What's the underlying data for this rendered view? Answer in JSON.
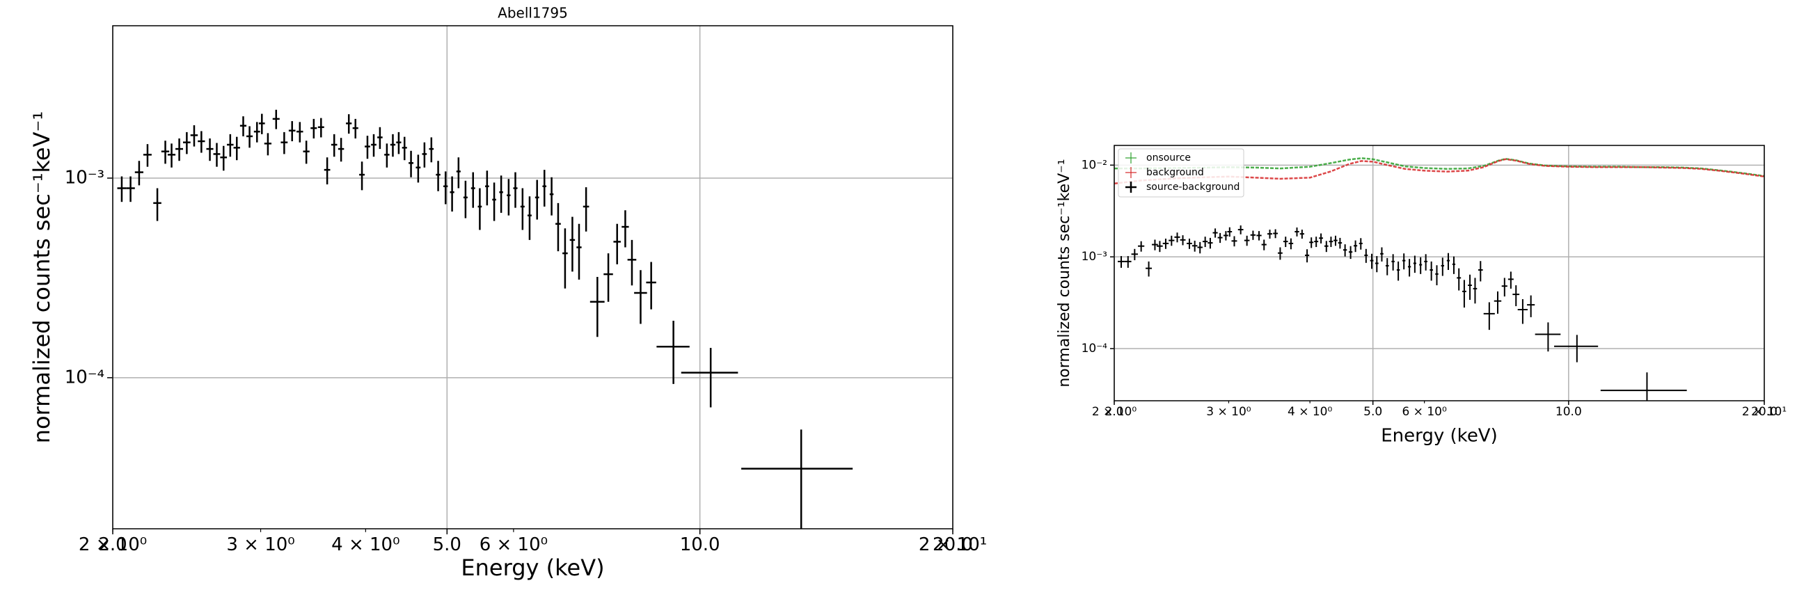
{
  "chart_data": [
    {
      "type": "errorbar",
      "title": "Abell1795",
      "xlabel": "Energy (keV)",
      "ylabel": "normalized counts sec⁻¹keV⁻¹",
      "xscale": "log",
      "yscale": "log",
      "grid": true,
      "xlim": [
        2,
        20
      ],
      "ylim": [
        1.75e-05,
        0.0058
      ],
      "xticks": [
        {
          "value": 2,
          "label": "2.0"
        },
        {
          "value": 5,
          "label": "5.0"
        },
        {
          "value": 10,
          "label": "10.0"
        },
        {
          "value": 20,
          "label": "20.0"
        }
      ],
      "xminorticks": [
        {
          "value": 2,
          "label": "2 × 10⁰"
        },
        {
          "value": 3,
          "label": "3 × 10⁰"
        },
        {
          "value": 4,
          "label": "4 × 10⁰"
        },
        {
          "value": 6,
          "label": "6 × 10⁰"
        },
        {
          "value": 20,
          "label": "2 × 10¹"
        }
      ],
      "yticks": [
        {
          "value": 0.001,
          "label": "10⁻³"
        },
        {
          "value": 0.0001,
          "label": "10⁻⁴"
        }
      ],
      "series": [
        {
          "style": "errorbar",
          "color": "#000000",
          "x": [
            2.05,
            2.1,
            2.15,
            2.2,
            2.26,
            2.31,
            2.35,
            2.4,
            2.45,
            2.5,
            2.55,
            2.61,
            2.66,
            2.71,
            2.76,
            2.81,
            2.86,
            2.91,
            2.97,
            3.01,
            3.06,
            3.13,
            3.2,
            3.27,
            3.34,
            3.4,
            3.47,
            3.54,
            3.6,
            3.67,
            3.74,
            3.82,
            3.89,
            3.96,
            4.02,
            4.09,
            4.16,
            4.24,
            4.31,
            4.38,
            4.45,
            4.53,
            4.62,
            4.7,
            4.79,
            4.88,
            4.98,
            5.07,
            5.16,
            5.26,
            5.37,
            5.47,
            5.58,
            5.69,
            5.8,
            5.92,
            6.03,
            6.15,
            6.27,
            6.4,
            6.53,
            6.66,
            6.78,
            6.91,
            7.05,
            7.18,
            7.32,
            7.55,
            7.78,
            7.97,
            8.15,
            8.3,
            8.5,
            8.75,
            9.3,
            10.3,
            13.2
          ],
          "values": [
            0.00089,
            0.00089,
            0.00107,
            0.00131,
            0.00075,
            0.00136,
            0.00131,
            0.0014,
            0.00151,
            0.00164,
            0.00153,
            0.0014,
            0.00132,
            0.00127,
            0.00147,
            0.00142,
            0.00183,
            0.00162,
            0.00171,
            0.00188,
            0.00149,
            0.00198,
            0.00151,
            0.00173,
            0.00171,
            0.00136,
            0.00178,
            0.0018,
            0.0011,
            0.00147,
            0.0014,
            0.00188,
            0.00178,
            0.00104,
            0.00144,
            0.00147,
            0.0016,
            0.00131,
            0.00147,
            0.00151,
            0.00142,
            0.00119,
            0.00113,
            0.00132,
            0.0014,
            0.00104,
            0.00091,
            0.00085,
            0.00108,
            0.0008,
            0.00089,
            0.00072,
            0.00091,
            0.00078,
            0.00085,
            0.00082,
            0.00089,
            0.00072,
            0.00065,
            0.0008,
            0.00091,
            0.00083,
            0.00059,
            0.00042,
            0.00049,
            0.00045,
            0.00072,
            0.00024,
            0.00033,
            0.00048,
            0.00057,
            0.00039,
            0.000266,
            0.0003,
            0.000143,
            0.000106,
            3.5e-05
          ],
          "xerr": [
            0.025,
            0.025,
            0.025,
            0.025,
            0.025,
            0.025,
            0.025,
            0.025,
            0.025,
            0.025,
            0.025,
            0.025,
            0.025,
            0.025,
            0.025,
            0.025,
            0.025,
            0.025,
            0.025,
            0.025,
            0.03,
            0.03,
            0.03,
            0.03,
            0.03,
            0.03,
            0.03,
            0.03,
            0.03,
            0.03,
            0.03,
            0.03,
            0.03,
            0.03,
            0.03,
            0.03,
            0.03,
            0.03,
            0.03,
            0.03,
            0.03,
            0.03,
            0.03,
            0.03,
            0.03,
            0.03,
            0.03,
            0.03,
            0.03,
            0.03,
            0.03,
            0.03,
            0.03,
            0.03,
            0.03,
            0.03,
            0.035,
            0.035,
            0.035,
            0.035,
            0.035,
            0.035,
            0.05,
            0.05,
            0.05,
            0.05,
            0.06,
            0.15,
            0.1,
            0.08,
            0.08,
            0.1,
            0.15,
            0.12,
            0.42,
            0.8,
            2.0
          ],
          "yerr": [
            0.00013,
            0.00013,
            0.00015,
            0.00017,
            0.00014,
            0.00018,
            0.00018,
            0.00018,
            0.00019,
            0.0002,
            0.00019,
            0.00018,
            0.00018,
            0.00018,
            0.00019,
            0.00019,
            0.00021,
            0.0002,
            0.0002,
            0.00022,
            0.00019,
            0.00022,
            0.00019,
            0.0002,
            0.0002,
            0.00018,
            0.0002,
            0.0002,
            0.00017,
            0.00019,
            0.00019,
            0.00021,
            0.0002,
            0.00017,
            0.00019,
            0.00019,
            0.0002,
            0.00018,
            0.00019,
            0.00019,
            0.00019,
            0.00018,
            0.00018,
            0.00019,
            0.0002,
            0.00018,
            0.00017,
            0.00017,
            0.00019,
            0.00017,
            0.00018,
            0.00017,
            0.00018,
            0.00017,
            0.00018,
            0.00017,
            0.00018,
            0.00017,
            0.00016,
            0.00018,
            0.00019,
            0.00018,
            0.00016,
            0.00014,
            0.00015,
            0.00014,
            0.00018,
            8e-05,
            9e-05,
            0.00011,
            0.00012,
            0.0001,
            8e-05,
            8e-05,
            5e-05,
            3.5e-05,
            2e-05
          ]
        }
      ]
    },
    {
      "type": "errorbar",
      "xlabel": "Energy (keV)",
      "ylabel": "normalized counts sec⁻¹keV⁻¹",
      "xscale": "log",
      "yscale": "log",
      "grid": true,
      "legend": "upper left",
      "xlim": [
        2,
        20
      ],
      "ylim": [
        2.7e-05,
        0.0164
      ],
      "xticks": [
        {
          "value": 2,
          "label": "2.0"
        },
        {
          "value": 5,
          "label": "5.0"
        },
        {
          "value": 10,
          "label": "10.0"
        },
        {
          "value": 20,
          "label": "20.0"
        }
      ],
      "xminorticks": [
        {
          "value": 2,
          "label": "2 × 10⁰"
        },
        {
          "value": 3,
          "label": "3 × 10⁰"
        },
        {
          "value": 4,
          "label": "4 × 10⁰"
        },
        {
          "value": 6,
          "label": "6 × 10⁰"
        },
        {
          "value": 20,
          "label": "2 × 10¹"
        }
      ],
      "yticks": [
        {
          "value": 0.01,
          "label": "10⁻²"
        },
        {
          "value": 0.001,
          "label": "10⁻³"
        },
        {
          "value": 0.0001,
          "label": "10⁻⁴"
        }
      ],
      "series": [
        {
          "name": "onsource",
          "style": "line",
          "color": "#2ca02c",
          "x": [
            2.0,
            2.2,
            2.5,
            2.8,
            3.0,
            3.3,
            3.6,
            4.0,
            4.3,
            4.6,
            4.8,
            5.0,
            5.3,
            5.6,
            6.0,
            6.5,
            7.0,
            7.4,
            7.8,
            8.0,
            8.3,
            8.7,
            9.2,
            10,
            11,
            12,
            13,
            14,
            15,
            16,
            17,
            18,
            19,
            20
          ],
          "values": [
            0.0092,
            0.0092,
            0.0093,
            0.0094,
            0.0095,
            0.0094,
            0.0092,
            0.0096,
            0.0105,
            0.0115,
            0.0119,
            0.0116,
            0.0106,
            0.0097,
            0.0093,
            0.0091,
            0.0092,
            0.0098,
            0.0112,
            0.0117,
            0.0113,
            0.0104,
            0.0099,
            0.0097,
            0.0096,
            0.0096,
            0.0095,
            0.0095,
            0.0094,
            0.0092,
            0.0088,
            0.0084,
            0.008,
            0.0076
          ]
        },
        {
          "name": "background",
          "style": "line",
          "color": "#d62728",
          "x": [
            2.0,
            2.2,
            2.5,
            2.8,
            3.0,
            3.3,
            3.6,
            4.0,
            4.3,
            4.6,
            4.8,
            5.0,
            5.3,
            5.6,
            6.0,
            6.5,
            7.0,
            7.4,
            7.8,
            8.0,
            8.3,
            8.7,
            9.2,
            10,
            11,
            12,
            13,
            14,
            15,
            16,
            17,
            18,
            19,
            20
          ],
          "values": [
            0.0063,
            0.0068,
            0.0072,
            0.0074,
            0.0075,
            0.0073,
            0.0071,
            0.0073,
            0.0085,
            0.0103,
            0.0111,
            0.0109,
            0.0099,
            0.0091,
            0.0087,
            0.0085,
            0.0087,
            0.0095,
            0.0111,
            0.0116,
            0.0112,
            0.0103,
            0.0098,
            0.0096,
            0.0095,
            0.0095,
            0.0095,
            0.0094,
            0.0093,
            0.0091,
            0.0087,
            0.0083,
            0.0079,
            0.0075
          ]
        },
        {
          "name": "source-background",
          "style": "errorbar",
          "color": "#000000",
          "x": [
            2.05,
            2.1,
            2.15,
            2.2,
            2.26,
            2.31,
            2.35,
            2.4,
            2.45,
            2.5,
            2.55,
            2.61,
            2.66,
            2.71,
            2.76,
            2.81,
            2.86,
            2.91,
            2.97,
            3.01,
            3.06,
            3.13,
            3.2,
            3.27,
            3.34,
            3.4,
            3.47,
            3.54,
            3.6,
            3.67,
            3.74,
            3.82,
            3.89,
            3.96,
            4.02,
            4.09,
            4.16,
            4.24,
            4.31,
            4.38,
            4.45,
            4.53,
            4.62,
            4.7,
            4.79,
            4.88,
            4.98,
            5.07,
            5.16,
            5.26,
            5.37,
            5.47,
            5.58,
            5.69,
            5.8,
            5.92,
            6.03,
            6.15,
            6.27,
            6.4,
            6.53,
            6.66,
            6.78,
            6.91,
            7.05,
            7.18,
            7.32,
            7.55,
            7.78,
            7.97,
            8.15,
            8.3,
            8.5,
            8.75,
            9.3,
            10.3,
            13.2
          ],
          "values": [
            0.00089,
            0.00089,
            0.00107,
            0.00131,
            0.00075,
            0.00136,
            0.00131,
            0.0014,
            0.00151,
            0.00164,
            0.00153,
            0.0014,
            0.00132,
            0.00127,
            0.00147,
            0.00142,
            0.00183,
            0.00162,
            0.00171,
            0.00188,
            0.00149,
            0.00198,
            0.00151,
            0.00173,
            0.00171,
            0.00136,
            0.00178,
            0.0018,
            0.0011,
            0.00147,
            0.0014,
            0.00188,
            0.00178,
            0.00104,
            0.00144,
            0.00147,
            0.0016,
            0.00131,
            0.00147,
            0.00151,
            0.00142,
            0.00119,
            0.00113,
            0.00132,
            0.0014,
            0.00104,
            0.00091,
            0.00085,
            0.00108,
            0.0008,
            0.00089,
            0.00072,
            0.00091,
            0.00078,
            0.00085,
            0.00082,
            0.00089,
            0.00072,
            0.00065,
            0.0008,
            0.00091,
            0.00083,
            0.00059,
            0.00042,
            0.00049,
            0.00045,
            0.00072,
            0.00024,
            0.00033,
            0.00048,
            0.00057,
            0.00039,
            0.000266,
            0.0003,
            0.000143,
            0.000106,
            3.5e-05
          ],
          "xerr": [
            0.025,
            0.025,
            0.025,
            0.025,
            0.025,
            0.025,
            0.025,
            0.025,
            0.025,
            0.025,
            0.025,
            0.025,
            0.025,
            0.025,
            0.025,
            0.025,
            0.025,
            0.025,
            0.025,
            0.025,
            0.03,
            0.03,
            0.03,
            0.03,
            0.03,
            0.03,
            0.03,
            0.03,
            0.03,
            0.03,
            0.03,
            0.03,
            0.03,
            0.03,
            0.03,
            0.03,
            0.03,
            0.03,
            0.03,
            0.03,
            0.03,
            0.03,
            0.03,
            0.03,
            0.03,
            0.03,
            0.03,
            0.03,
            0.03,
            0.03,
            0.03,
            0.03,
            0.03,
            0.03,
            0.03,
            0.03,
            0.035,
            0.035,
            0.035,
            0.035,
            0.035,
            0.035,
            0.05,
            0.05,
            0.05,
            0.05,
            0.06,
            0.15,
            0.1,
            0.08,
            0.08,
            0.1,
            0.15,
            0.12,
            0.42,
            0.8,
            2.0
          ],
          "yerr": [
            0.00013,
            0.00013,
            0.00015,
            0.00017,
            0.00014,
            0.00018,
            0.00018,
            0.00018,
            0.00019,
            0.0002,
            0.00019,
            0.00018,
            0.00018,
            0.00018,
            0.00019,
            0.00019,
            0.00021,
            0.0002,
            0.0002,
            0.00022,
            0.00019,
            0.00022,
            0.00019,
            0.0002,
            0.0002,
            0.00018,
            0.0002,
            0.0002,
            0.00017,
            0.00019,
            0.00019,
            0.00021,
            0.0002,
            0.00017,
            0.00019,
            0.00019,
            0.0002,
            0.00018,
            0.00019,
            0.00019,
            0.00019,
            0.00018,
            0.00018,
            0.00019,
            0.0002,
            0.00018,
            0.00017,
            0.00017,
            0.00019,
            0.00017,
            0.00018,
            0.00017,
            0.00018,
            0.00017,
            0.00018,
            0.00017,
            0.00018,
            0.00017,
            0.00016,
            0.00018,
            0.00019,
            0.00018,
            0.00016,
            0.00014,
            0.00015,
            0.00014,
            0.00018,
            8e-05,
            9e-05,
            0.00011,
            0.00012,
            0.0001,
            8e-05,
            8e-05,
            5e-05,
            3.5e-05,
            2e-05
          ]
        }
      ]
    }
  ]
}
